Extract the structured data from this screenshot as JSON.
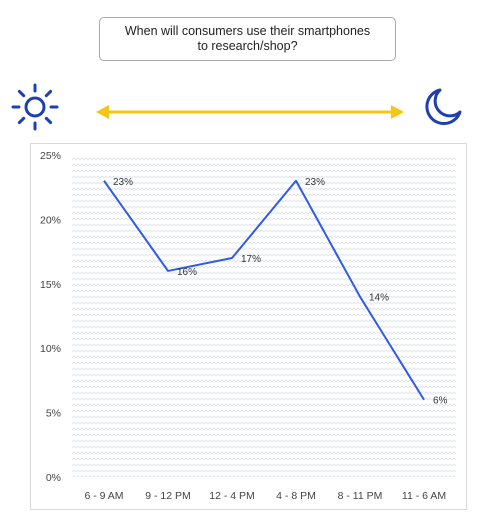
{
  "header": {
    "title_line1": "When will consumers use their smartphones",
    "title_line2": "to research/shop?"
  },
  "icons": {
    "left": "sun-icon",
    "right": "moon-icon",
    "arrow": "double-arrow-icon"
  },
  "colors": {
    "line": "#2f5be7",
    "icon": "#1f3fb0",
    "arrow": "#f5c518"
  },
  "chart_data": {
    "type": "line",
    "categories": [
      "6 - 9 AM",
      "9 - 12 PM",
      "12 - 4 PM",
      "4 - 8 PM",
      "8 - 11 PM",
      "11 - 6 AM"
    ],
    "values": [
      23,
      16,
      17,
      23,
      14,
      6
    ],
    "data_labels": [
      "23%",
      "16%",
      "17%",
      "23%",
      "14%",
      "6%"
    ],
    "y_ticks": [
      {
        "value": 0,
        "label": "0%"
      },
      {
        "value": 5,
        "label": "5%"
      },
      {
        "value": 10,
        "label": "10%"
      },
      {
        "value": 15,
        "label": "15%"
      },
      {
        "value": 20,
        "label": "20%"
      },
      {
        "value": 25,
        "label": "25%"
      }
    ],
    "ylim": [
      0,
      25
    ],
    "grid": false,
    "legend": "none"
  }
}
